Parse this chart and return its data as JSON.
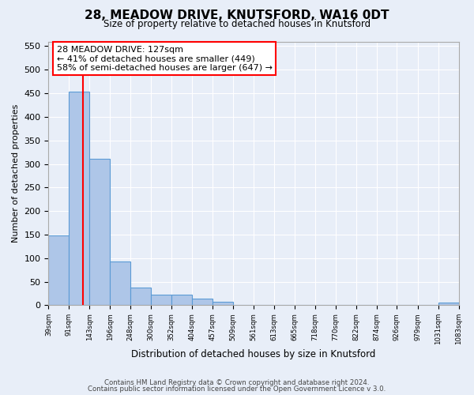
{
  "title_line1": "28, MEADOW DRIVE, KNUTSFORD, WA16 0DT",
  "title_line2": "Size of property relative to detached houses in Knutsford",
  "xlabel": "Distribution of detached houses by size in Knutsford",
  "ylabel": "Number of detached properties",
  "bar_left_edges": [
    39,
    91,
    143,
    196,
    248,
    300,
    352,
    404,
    457,
    509,
    561,
    613,
    665,
    718,
    770,
    822,
    874,
    926,
    979,
    1031
  ],
  "bar_heights": [
    148,
    454,
    311,
    93,
    38,
    22,
    22,
    14,
    8,
    0,
    0,
    0,
    0,
    0,
    0,
    0,
    0,
    0,
    0,
    6
  ],
  "bin_width": 52,
  "bar_color": "#aec6e8",
  "bar_edge_color": "#5b9bd5",
  "x_tick_labels": [
    "39sqm",
    "91sqm",
    "143sqm",
    "196sqm",
    "248sqm",
    "300sqm",
    "352sqm",
    "404sqm",
    "457sqm",
    "509sqm",
    "561sqm",
    "613sqm",
    "665sqm",
    "718sqm",
    "770sqm",
    "822sqm",
    "874sqm",
    "926sqm",
    "979sqm",
    "1031sqm",
    "1083sqm"
  ],
  "ylim": [
    0,
    560
  ],
  "yticks": [
    0,
    50,
    100,
    150,
    200,
    250,
    300,
    350,
    400,
    450,
    500,
    550
  ],
  "red_line_x": 127,
  "annotation_title": "28 MEADOW DRIVE: 127sqm",
  "annotation_line1": "← 41% of detached houses are smaller (449)",
  "annotation_line2": "58% of semi-detached houses are larger (647) →",
  "footer_line1": "Contains HM Land Registry data © Crown copyright and database right 2024.",
  "footer_line2": "Contains public sector information licensed under the Open Government Licence v 3.0.",
  "background_color": "#e8eef8",
  "plot_background": "#e8eef8",
  "grid_color": "#ffffff"
}
